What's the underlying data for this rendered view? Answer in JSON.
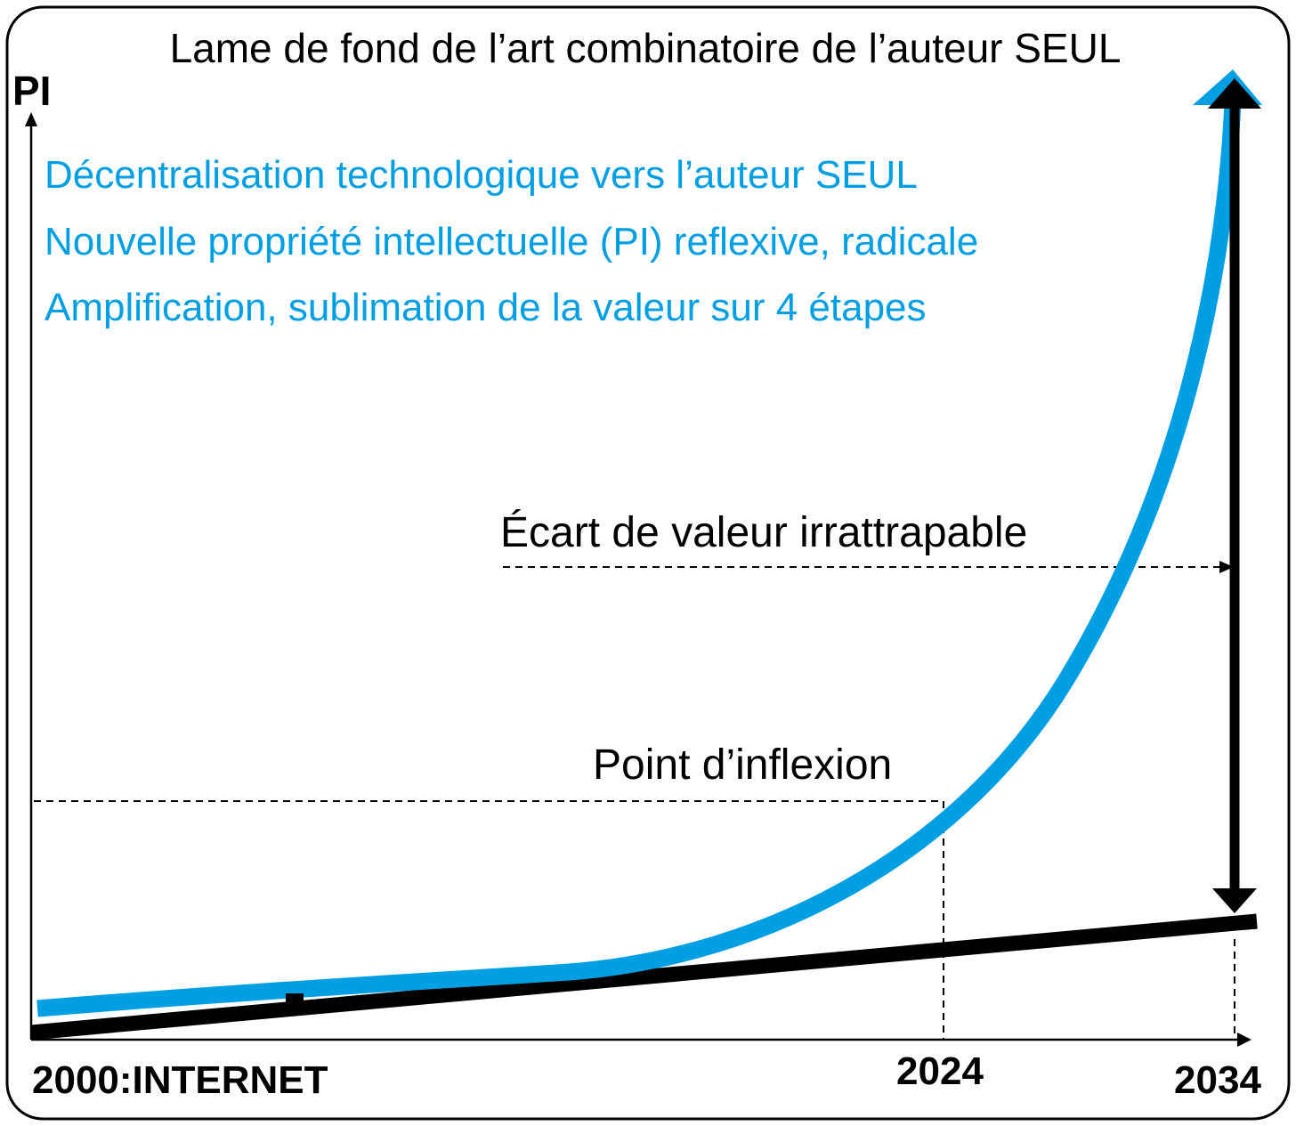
{
  "title": "Lame de fond de l’art combinatoire de l’auteur SEUL",
  "y_axis_label": "PI",
  "blue_lines": [
    "Décentralisation technologique vers l’auteur SEUL",
    "Nouvelle propriété intellectuelle (PI) reflexive, radicale",
    "Amplification, sublimation de la valeur sur 4 étapes"
  ],
  "annotations": {
    "gap": "Écart de valeur irrattrapable",
    "inflexion": "Point d’inflexion"
  },
  "x_labels": {
    "start": "2000:INTERNET",
    "mid": "2024",
    "end": "2034"
  },
  "colors": {
    "accent_blue": "#009fe3",
    "black": "#000000",
    "frame": "#000000"
  }
}
